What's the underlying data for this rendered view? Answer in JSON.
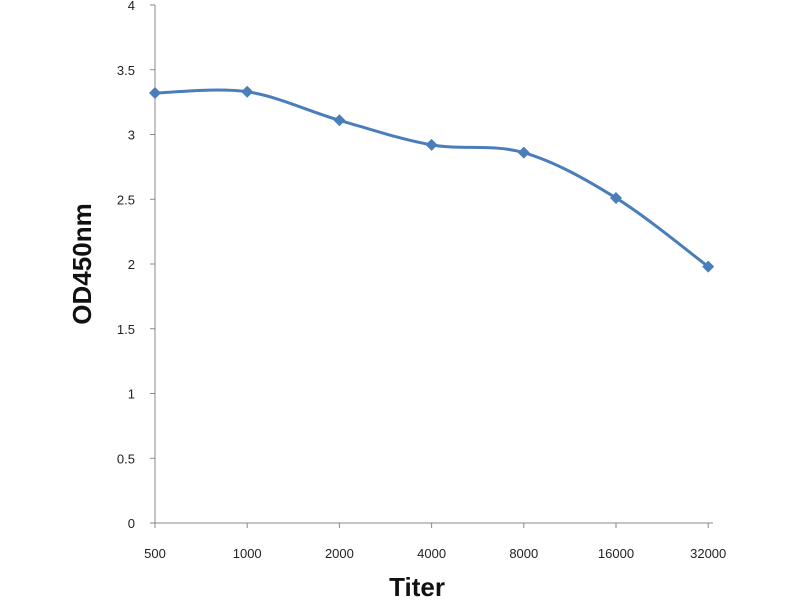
{
  "chart_data": {
    "type": "line",
    "title": "",
    "xlabel": "Titer",
    "ylabel": "OD450nm",
    "categories": [
      "500",
      "1000",
      "2000",
      "4000",
      "8000",
      "16000",
      "32000"
    ],
    "yticks": [
      "0",
      "0.5",
      "1",
      "1.5",
      "2",
      "2.5",
      "3",
      "3.5",
      "4"
    ],
    "ylim": [
      0,
      4
    ],
    "grid": false,
    "legend": "none",
    "series": [
      {
        "values": [
          3.32,
          3.33,
          3.11,
          2.92,
          2.86,
          2.51,
          1.98
        ],
        "color": "#4a7ebb",
        "marker": "diamond"
      }
    ]
  }
}
